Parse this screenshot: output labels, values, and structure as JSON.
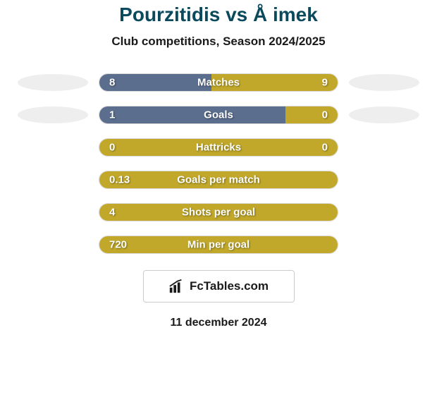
{
  "title": "Pourzitidis vs Å imek",
  "subtitle": "Club competitions, Season 2024/2025",
  "badge": "FcTables.com",
  "date": "11 december 2024",
  "colors": {
    "left_bar": "#5b6e8e",
    "right_bar": "#c1a82a",
    "title_color": "#0a4a5c",
    "text_color": "#1a1a1a",
    "placeholder": "#eeeeee",
    "bar_text": "#ffffff"
  },
  "stats": [
    {
      "label": "Matches",
      "left_val": "8",
      "right_val": "9",
      "left_pct": 47.0,
      "right_pct": 53.0,
      "show_placeholders": true
    },
    {
      "label": "Goals",
      "left_val": "1",
      "right_val": "0",
      "left_pct": 78.0,
      "right_pct": 22.0,
      "show_placeholders": true
    },
    {
      "label": "Hattricks",
      "left_val": "0",
      "right_val": "0",
      "left_pct": 0.0,
      "right_pct": 100.0,
      "show_placeholders": false
    },
    {
      "label": "Goals per match",
      "left_val": "0.13",
      "right_val": "",
      "left_pct": 0.0,
      "right_pct": 100.0,
      "show_placeholders": false
    },
    {
      "label": "Shots per goal",
      "left_val": "4",
      "right_val": "",
      "left_pct": 0.0,
      "right_pct": 100.0,
      "show_placeholders": false
    },
    {
      "label": "Min per goal",
      "left_val": "720",
      "right_val": "",
      "left_pct": 0.0,
      "right_pct": 100.0,
      "show_placeholders": false
    }
  ]
}
